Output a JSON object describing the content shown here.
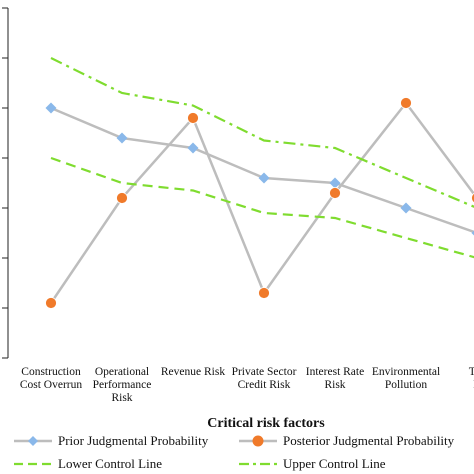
{
  "chart_data": {
    "type": "line",
    "xlabel": "Critical risk factors",
    "ylabel": "",
    "ylim": [
      0,
      0.7
    ],
    "y_ticks": [
      0,
      0.1,
      0.2,
      0.3,
      0.4,
      0.5,
      0.6,
      0.7
    ],
    "categories": [
      [
        "Construction",
        "Cost Overrun"
      ],
      [
        "Operational",
        "Performance",
        "Risk"
      ],
      [
        "Revenue Risk"
      ],
      [
        "Private Sector",
        "Credit Risk"
      ],
      [
        "Interest Rate",
        "Risk"
      ],
      [
        "Environmental",
        "Pollution"
      ],
      [
        "Tec",
        "R"
      ]
    ],
    "series": [
      {
        "name": "Prior Judgmental Probability",
        "color": "#8ab8ea",
        "line_color": "#bdbdbd",
        "marker": "diamond",
        "values": [
          0.5,
          0.44,
          0.42,
          0.36,
          0.35,
          0.3,
          0.25
        ]
      },
      {
        "name": "Posterior Judgmental Probability",
        "color": "#f07a2a",
        "line_color": "#bdbdbd",
        "marker": "circle",
        "values": [
          0.11,
          0.32,
          0.48,
          0.13,
          0.33,
          0.51,
          0.32
        ]
      },
      {
        "name": "Lower Control Line",
        "color": "#7fdc2f",
        "line_style": "dashed",
        "values": [
          0.4,
          0.35,
          0.335,
          0.29,
          0.28,
          0.24,
          0.2
        ]
      },
      {
        "name": "Upper Control Line",
        "color": "#7fdc2f",
        "line_style": "dash-dot",
        "values": [
          0.6,
          0.53,
          0.505,
          0.435,
          0.42,
          0.36,
          0.3
        ]
      }
    ],
    "grid": false,
    "legend_position": "bottom"
  }
}
